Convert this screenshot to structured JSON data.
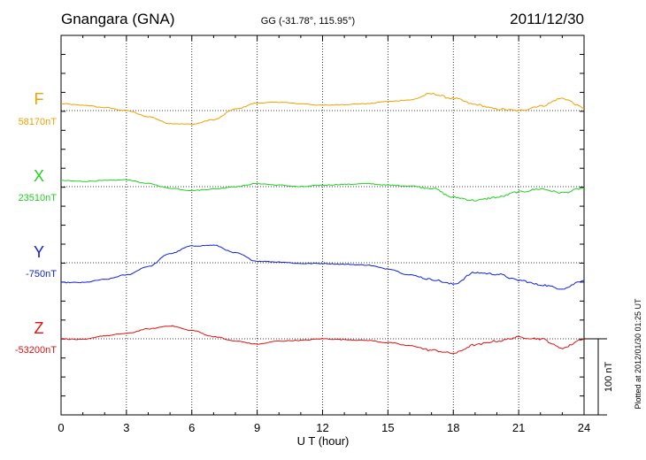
{
  "header": {
    "station": "Gnangara (GNA)",
    "coords": "GG (-31.78°, 115.95°)",
    "date": "2011/12/30"
  },
  "footer": {
    "xlabel": "U T (hour)",
    "plotted": "Plotted at 2012/01/30 01:25 UT",
    "scale_label": "100 nT"
  },
  "chart_data": {
    "type": "line",
    "title": "Gnangara (GNA)",
    "subtitle": "GG (-31.78°, 115.95°)",
    "date": "2011/12/30",
    "xlabel": "U T (hour)",
    "xlim": [
      0,
      24
    ],
    "x_ticks": [
      "0",
      "3",
      "6",
      "9",
      "12",
      "15",
      "18",
      "21",
      "24"
    ],
    "grid": true,
    "scale_bar_nT": 100,
    "x": [
      0,
      1,
      2,
      3,
      4,
      5,
      6,
      7,
      8,
      9,
      10,
      11,
      12,
      13,
      14,
      15,
      16,
      17,
      18,
      19,
      20,
      21,
      22,
      23,
      24
    ],
    "series": [
      {
        "name": "F",
        "baseline_label": "58170nT",
        "color": "#f0a000",
        "values": [
          58179,
          58177,
          58174,
          58170,
          58162,
          58153,
          58152,
          58158,
          58172,
          58180,
          58181,
          58179,
          58177,
          58178,
          58179,
          58182,
          58184,
          58192,
          58186,
          58178,
          58172,
          58170,
          58176,
          58186,
          58174
        ]
      },
      {
        "name": "X",
        "baseline_label": "23510nT",
        "color": "#20d020",
        "values": [
          23518,
          23517,
          23518,
          23519,
          23514,
          23508,
          23505,
          23507,
          23510,
          23514,
          23512,
          23510,
          23512,
          23513,
          23514,
          23512,
          23511,
          23508,
          23496,
          23492,
          23496,
          23503,
          23507,
          23502,
          23508
        ]
      },
      {
        "name": "Y",
        "baseline_label": "-750nT",
        "color": "#1020e0",
        "values": [
          -776,
          -776,
          -772,
          -766,
          -755,
          -738,
          -728,
          -727,
          -737,
          -748,
          -749,
          -751,
          -751,
          -752,
          -753,
          -758,
          -766,
          -772,
          -778,
          -763,
          -765,
          -773,
          -779,
          -784,
          -773
        ]
      },
      {
        "name": "Z",
        "baseline_label": "-53200nT",
        "color": "#e01010",
        "values": [
          -53200,
          -53201,
          -53196,
          -53193,
          -53187,
          -53183,
          -53189,
          -53197,
          -53203,
          -53207,
          -53203,
          -53202,
          -53200,
          -53201,
          -53202,
          -53205,
          -53209,
          -53215,
          -53219,
          -53208,
          -53203,
          -53198,
          -53200,
          -53212,
          -53200
        ]
      }
    ]
  }
}
